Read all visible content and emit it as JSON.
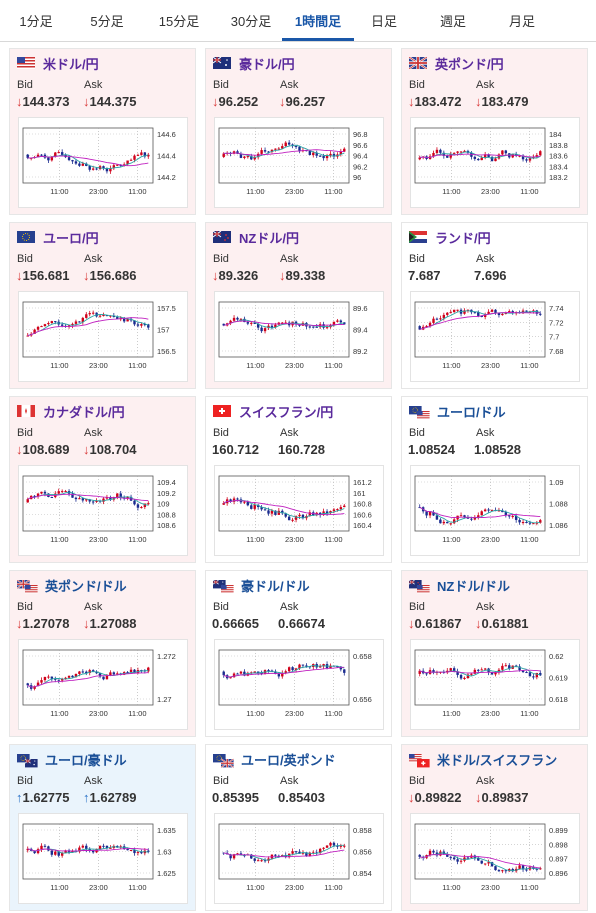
{
  "tabs": [
    {
      "label": "1分足",
      "active": false
    },
    {
      "label": "5分足",
      "active": false
    },
    {
      "label": "15分足",
      "active": false
    },
    {
      "label": "30分足",
      "active": false
    },
    {
      "label": "1時間足",
      "active": true
    },
    {
      "label": "日足",
      "active": false
    },
    {
      "label": "週足",
      "active": false
    },
    {
      "label": "月足",
      "active": false
    }
  ],
  "labels": {
    "bid": "Bid",
    "ask": "Ask"
  },
  "colors": {
    "down_bg": "#fdf0f1",
    "up_bg": "#eaf4fc",
    "down_arrow": "#d93a3a",
    "up_arrow": "#2a72c8",
    "candle_up": "#d0021b",
    "candle_down": "#1a2b8f",
    "ma_short": "#2aa5a5",
    "ma_long": "#c020c0",
    "tab_active": "#1a57a8"
  },
  "cards": [
    {
      "pair": "米ドル/円",
      "flag": "us-flag-icon",
      "dir": "down",
      "bid": "144.373",
      "ask": "144.375",
      "y_ticks": [
        "144.6",
        "144.4",
        "144.2"
      ],
      "x_ticks": [
        "11:00",
        "23:00",
        "11:00"
      ],
      "title_color": "purple"
    },
    {
      "pair": "豪ドル/円",
      "flag": "au-flag-icon",
      "dir": "down",
      "bid": "96.252",
      "ask": "96.257",
      "y_ticks": [
        "96.8",
        "96.6",
        "96.4",
        "96.2",
        "96"
      ],
      "x_ticks": [
        "11:00",
        "23:00",
        "11:00"
      ],
      "title_color": "purple"
    },
    {
      "pair": "英ポンド/円",
      "flag": "uk-flag-icon",
      "dir": "down",
      "bid": "183.472",
      "ask": "183.479",
      "y_ticks": [
        "184",
        "183.8",
        "183.6",
        "183.4",
        "183.2"
      ],
      "x_ticks": [
        "11:00",
        "23:00",
        "11:00"
      ],
      "title_color": "purple"
    },
    {
      "pair": "ユーロ/円",
      "flag": "eu-flag-icon",
      "dir": "down",
      "bid": "156.681",
      "ask": "156.686",
      "y_ticks": [
        "157.5",
        "157",
        "156.5"
      ],
      "x_ticks": [
        "11:00",
        "23:00",
        "11:00"
      ],
      "title_color": "purple"
    },
    {
      "pair": "NZドル/円",
      "flag": "nz-flag-icon",
      "dir": "down",
      "bid": "89.326",
      "ask": "89.338",
      "y_ticks": [
        "89.6",
        "89.4",
        "89.2"
      ],
      "x_ticks": [
        "11:00",
        "23:00",
        "11:00"
      ],
      "title_color": "purple"
    },
    {
      "pair": "ランド/円",
      "flag": "za-flag-icon",
      "dir": "none",
      "bid": "7.687",
      "ask": "7.696",
      "y_ticks": [
        "7.74",
        "7.72",
        "7.7",
        "7.68"
      ],
      "x_ticks": [
        "11:00",
        "23:00",
        "11:00"
      ],
      "title_color": "purple"
    },
    {
      "pair": "カナダドル/円",
      "flag": "ca-flag-icon",
      "dir": "down",
      "bid": "108.689",
      "ask": "108.704",
      "y_ticks": [
        "109.4",
        "109.2",
        "109",
        "108.8",
        "108.6"
      ],
      "x_ticks": [
        "11:00",
        "23:00",
        "11:00"
      ],
      "title_color": "purple"
    },
    {
      "pair": "スイスフラン/円",
      "flag": "ch-flag-icon",
      "dir": "none",
      "bid": "160.712",
      "ask": "160.728",
      "y_ticks": [
        "161.2",
        "161",
        "160.8",
        "160.6",
        "160.4"
      ],
      "x_ticks": [
        "11:00",
        "23:00",
        "11:00"
      ],
      "title_color": "purple"
    },
    {
      "pair": "ユーロ/ドル",
      "flag": "eu-us-flag-icon",
      "dir": "none",
      "bid": "1.08524",
      "ask": "1.08528",
      "y_ticks": [
        "1.09",
        "1.088",
        "1.086"
      ],
      "x_ticks": [
        "11:00",
        "23:00",
        "11:00"
      ],
      "title_color": "blue"
    },
    {
      "pair": "英ポンド/ドル",
      "flag": "uk-us-flag-icon",
      "dir": "down",
      "bid": "1.27078",
      "ask": "1.27088",
      "y_ticks": [
        "1.272",
        "1.27"
      ],
      "x_ticks": [
        "11:00",
        "23:00",
        "11:00"
      ],
      "title_color": "blue"
    },
    {
      "pair": "豪ドル/ドル",
      "flag": "au-us-flag-icon",
      "dir": "none",
      "bid": "0.66665",
      "ask": "0.66674",
      "y_ticks": [
        "0.658",
        "0.656"
      ],
      "x_ticks": [
        "11:00",
        "23:00",
        "11:00"
      ],
      "title_color": "blue"
    },
    {
      "pair": "NZドル/ドル",
      "flag": "nz-us-flag-icon",
      "dir": "down",
      "bid": "0.61867",
      "ask": "0.61881",
      "y_ticks": [
        "0.62",
        "0.619",
        "0.618"
      ],
      "x_ticks": [
        "11:00",
        "23:00",
        "11:00"
      ],
      "title_color": "blue"
    },
    {
      "pair": "ユーロ/豪ドル",
      "flag": "eu-au-flag-icon",
      "dir": "up",
      "bid": "1.62775",
      "ask": "1.62789",
      "y_ticks": [
        "1.635",
        "1.63",
        "1.625"
      ],
      "x_ticks": [
        "11:00",
        "23:00",
        "11:00"
      ],
      "title_color": "blue"
    },
    {
      "pair": "ユーロ/英ポンド",
      "flag": "eu-uk-flag-icon",
      "dir": "none",
      "bid": "0.85395",
      "ask": "0.85403",
      "y_ticks": [
        "0.858",
        "0.856",
        "0.854"
      ],
      "x_ticks": [
        "11:00",
        "23:00",
        "11:00"
      ],
      "title_color": "blue"
    },
    {
      "pair": "米ドル/スイスフラン",
      "flag": "us-ch-flag-icon",
      "dir": "down",
      "bid": "0.89822",
      "ask": "0.89837",
      "y_ticks": [
        "0.899",
        "0.898",
        "0.897",
        "0.896"
      ],
      "x_ticks": [
        "11:00",
        "23:00",
        "11:00"
      ],
      "title_color": "blue"
    }
  ]
}
